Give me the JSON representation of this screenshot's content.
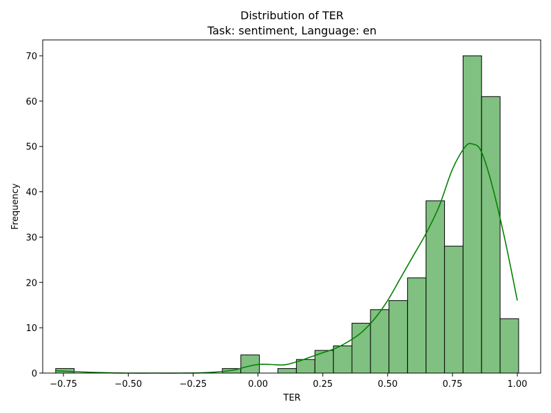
{
  "chart_data": {
    "type": "bar",
    "title": "Distribution of TER",
    "subtitle": "Task: sentiment, Language: en",
    "xlabel": "TER",
    "ylabel": "Frequency",
    "xlim": [
      -0.83,
      1.09
    ],
    "ylim": [
      0,
      73.5
    ],
    "xticks": [
      -0.75,
      -0.5,
      -0.25,
      0.0,
      0.25,
      0.5,
      0.75,
      1.0
    ],
    "xtick_labels": [
      "−0.75",
      "−0.50",
      "−0.25",
      "0.00",
      "0.25",
      "0.50",
      "0.75",
      "1.00"
    ],
    "yticks": [
      0,
      10,
      20,
      30,
      40,
      50,
      60,
      70
    ],
    "ytick_labels": [
      "0",
      "10",
      "20",
      "30",
      "40",
      "50",
      "60",
      "70"
    ],
    "grid": false,
    "bins": {
      "start": -0.78,
      "width": 0.0714,
      "counts": [
        1,
        0,
        0,
        0,
        0,
        0,
        0,
        0,
        0,
        1,
        4,
        0,
        1,
        3,
        5,
        6,
        11,
        14,
        16,
        21,
        38,
        28,
        70,
        61,
        12
      ]
    },
    "kde": {
      "x": [
        -0.78,
        -0.7,
        -0.6,
        -0.5,
        -0.4,
        -0.3,
        -0.2,
        -0.1,
        -0.05,
        0.0,
        0.05,
        0.1,
        0.15,
        0.2,
        0.25,
        0.3,
        0.35,
        0.4,
        0.45,
        0.5,
        0.55,
        0.6,
        0.65,
        0.7,
        0.75,
        0.8,
        0.83,
        0.86,
        0.9,
        0.95,
        1.0
      ],
      "y": [
        0.5,
        0.3,
        0.1,
        0.0,
        0.0,
        0.0,
        0.1,
        0.6,
        1.3,
        1.9,
        1.9,
        1.8,
        2.5,
        3.5,
        4.5,
        5.5,
        7.0,
        9.0,
        12.0,
        16.0,
        21.0,
        26.0,
        31.0,
        37.0,
        45.0,
        50.0,
        50.5,
        49.0,
        42.0,
        30.0,
        16.0
      ]
    },
    "colors": {
      "bar_fill": "#80c080",
      "bar_edge": "#000000",
      "kde_line": "#008000"
    }
  }
}
